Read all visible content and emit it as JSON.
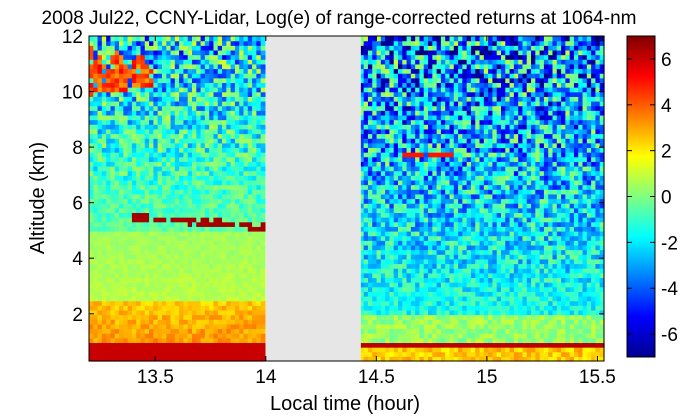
{
  "chart_data": {
    "type": "heatmap",
    "title": "2008 Jul22, CCNY-Lidar, Log(e) of range-corrected returns at 1064-nm",
    "xlabel": "Local time (hour)",
    "ylabel": "Altitude (km)",
    "xlim": [
      13.2,
      15.53
    ],
    "ylim": [
      0.3,
      12
    ],
    "x_ticks": [
      "13.5",
      "14",
      "14.5",
      "15",
      "15.5"
    ],
    "x_tick_values": [
      13.5,
      14,
      14.5,
      15,
      15.5
    ],
    "y_ticks": [
      "2",
      "4",
      "6",
      "8",
      "10",
      "12"
    ],
    "y_tick_values": [
      2,
      4,
      6,
      8,
      10,
      12
    ],
    "colorbar": {
      "range": [
        -7,
        7
      ],
      "ticks": [
        "6",
        "4",
        "2",
        "0",
        "-2",
        "-4",
        "-6"
      ],
      "tick_values": [
        6,
        4,
        2,
        0,
        -2,
        -4,
        -6
      ],
      "colormap": "jet"
    },
    "data_gap": {
      "x_start": 14.0,
      "x_end": 14.43,
      "color": "#e6e6e6"
    },
    "features": [
      {
        "type": "boundary_layer",
        "x_range": [
          13.2,
          15.53
        ],
        "altitude_km": 0.8,
        "value": 6
      },
      {
        "type": "cloud_layer",
        "x_range": [
          13.2,
          13.5
        ],
        "altitude_km": [
          9.9,
          11.4
        ],
        "value": 5.5
      },
      {
        "type": "aerosol_layer_top",
        "x_range": [
          13.4,
          14.0
        ],
        "altitude_km": [
          5.1,
          5.5
        ],
        "value": 6.5
      },
      {
        "type": "thin_cloud",
        "x_range": [
          14.6,
          14.85
        ],
        "altitude_km": 7.8,
        "value": 5
      }
    ]
  }
}
